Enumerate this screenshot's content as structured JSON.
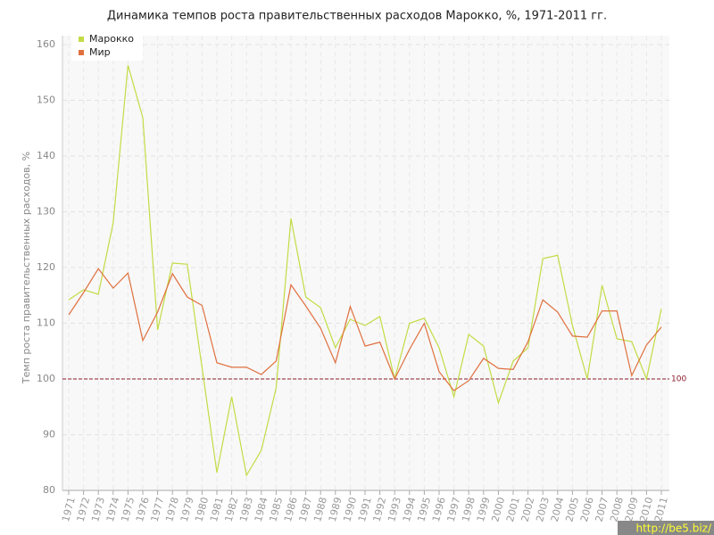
{
  "chart_data": {
    "type": "line",
    "title": "Динамика темпов роста правительственных расходов Марокко, %, 1971-2011 гг.",
    "y_label": "Темп роста правительственных расходов, %",
    "watermark": "http://be5.biz/",
    "categories": [
      "1971",
      "1972",
      "1973",
      "1974",
      "1975",
      "1976",
      "1977",
      "1978",
      "1979",
      "1980",
      "1981",
      "1982",
      "1983",
      "1984",
      "1985",
      "1986",
      "1987",
      "1988",
      "1989",
      "1990",
      "1991",
      "1992",
      "1993",
      "1994",
      "1995",
      "1996",
      "1997",
      "1998",
      "1999",
      "2000",
      "2001",
      "2002",
      "2003",
      "2004",
      "2005",
      "2006",
      "2007",
      "2008",
      "2009",
      "2010",
      "2011"
    ],
    "series": [
      {
        "name": "Марокко",
        "color": "#c2dc45",
        "values": [
          114.2,
          116,
          115.2,
          128,
          156.3,
          146.9,
          108.8,
          120.8,
          120.6,
          102,
          83.2,
          96.8,
          82.7,
          87.2,
          98.4,
          128.8,
          114.7,
          112.8,
          105.6,
          110.7,
          109.6,
          111.2,
          100,
          110,
          110.9,
          105.6,
          96.8,
          108,
          105.9,
          95.7,
          103.2,
          105.6,
          121.6,
          122.2,
          109.6,
          100,
          116.8,
          107.2,
          106.7,
          100,
          112.6
        ]
      },
      {
        "name": "Мир",
        "color": "#e0703f",
        "values": [
          111.5,
          115.5,
          119.8,
          116.3,
          119,
          106.9,
          112,
          118.9,
          114.7,
          113.2,
          102.9,
          102.1,
          102.1,
          100.8,
          103.2,
          116.9,
          113.1,
          109.1,
          102.9,
          113,
          105.9,
          106.6,
          100,
          105.3,
          110,
          101.3,
          97.9,
          99.7,
          103.7,
          101.9,
          101.7,
          106.7,
          114.2,
          112,
          107.7,
          107.5,
          112.2,
          112.2,
          100.6,
          106.1,
          109.3
        ]
      }
    ],
    "reference_line": 100,
    "ylim": [
      80,
      160
    ],
    "yticks": [
      80,
      90,
      100,
      110,
      120,
      130,
      140,
      150,
      160
    ],
    "grid": true,
    "legend": "top-left"
  }
}
